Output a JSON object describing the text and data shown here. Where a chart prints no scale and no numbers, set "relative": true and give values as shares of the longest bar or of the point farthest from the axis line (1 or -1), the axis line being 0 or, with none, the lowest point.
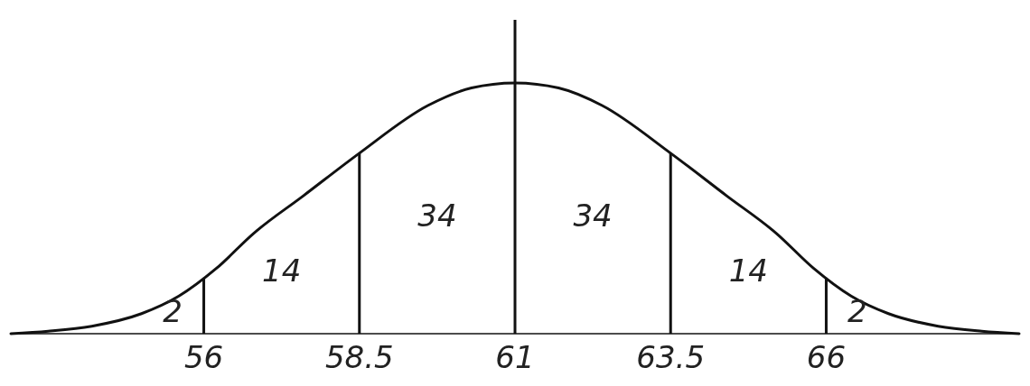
{
  "chart_data": {
    "type": "line",
    "relative": true,
    "color": "#111111",
    "line_style": "solid",
    "marker": "none",
    "tick_labels": "x",
    "x": [
      52.9,
      53.5,
      54.2,
      55,
      55.6,
      56.2,
      56.8,
      57.6,
      58.5,
      59.6,
      60.3,
      61,
      61.7,
      62.4,
      63.5,
      64.4,
      65.2,
      65.8,
      66.4,
      67,
      67.8,
      68.5,
      69.1
    ],
    "values": [
      0,
      0.01,
      0.03,
      0.08,
      0.15,
      0.26,
      0.4,
      0.55,
      0.72,
      0.91,
      0.98,
      1,
      0.98,
      0.91,
      0.72,
      0.55,
      0.4,
      0.26,
      0.15,
      0.08,
      0.03,
      0.01,
      0
    ],
    "xlim": [
      52.9,
      69.1
    ],
    "xticks": [
      56,
      58.5,
      61,
      63.5,
      66
    ],
    "ref_lines": [
      {
        "axis": "x",
        "value": 56
      },
      {
        "axis": "x",
        "value": 58.5
      },
      {
        "axis": "x",
        "value": 61
      },
      {
        "axis": "x",
        "value": 63.5
      },
      {
        "axis": "x",
        "value": 66
      }
    ],
    "annotations": [
      "2",
      "14",
      "34",
      "34",
      "14",
      "2"
    ]
  }
}
